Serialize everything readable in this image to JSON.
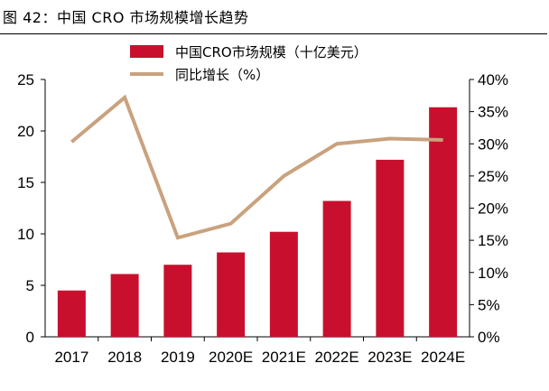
{
  "figure": {
    "title": "图 42：中国 CRO 市场规模增长趋势"
  },
  "colors": {
    "bar": "#C8102E",
    "line": "#C9A27E",
    "axis": "#000000"
  },
  "chart_data": {
    "type": "bar",
    "categories": [
      "2017",
      "2018",
      "2019",
      "2020E",
      "2021E",
      "2022E",
      "2023E",
      "2024E"
    ],
    "series": [
      {
        "name": "中国CRO市场规模（十亿美元）",
        "type": "bar",
        "axis": "left",
        "values": [
          4.5,
          6.1,
          7.0,
          8.2,
          10.2,
          13.2,
          17.2,
          22.3
        ]
      },
      {
        "name": "同比增长（%）",
        "type": "line",
        "axis": "right",
        "values": [
          30.3,
          37.2,
          15.4,
          17.6,
          25.0,
          30.0,
          30.8,
          30.6
        ]
      }
    ],
    "y_left": {
      "ylim": [
        0,
        25
      ],
      "ticks": [
        "0",
        "5",
        "10",
        "15",
        "20",
        "25"
      ]
    },
    "y_right": {
      "ylim": [
        0,
        40
      ],
      "ticks": [
        "0%",
        "5%",
        "10%",
        "15%",
        "20%",
        "25%",
        "30%",
        "35%",
        "40%"
      ]
    },
    "legend_position": "top-center",
    "grid": false
  }
}
